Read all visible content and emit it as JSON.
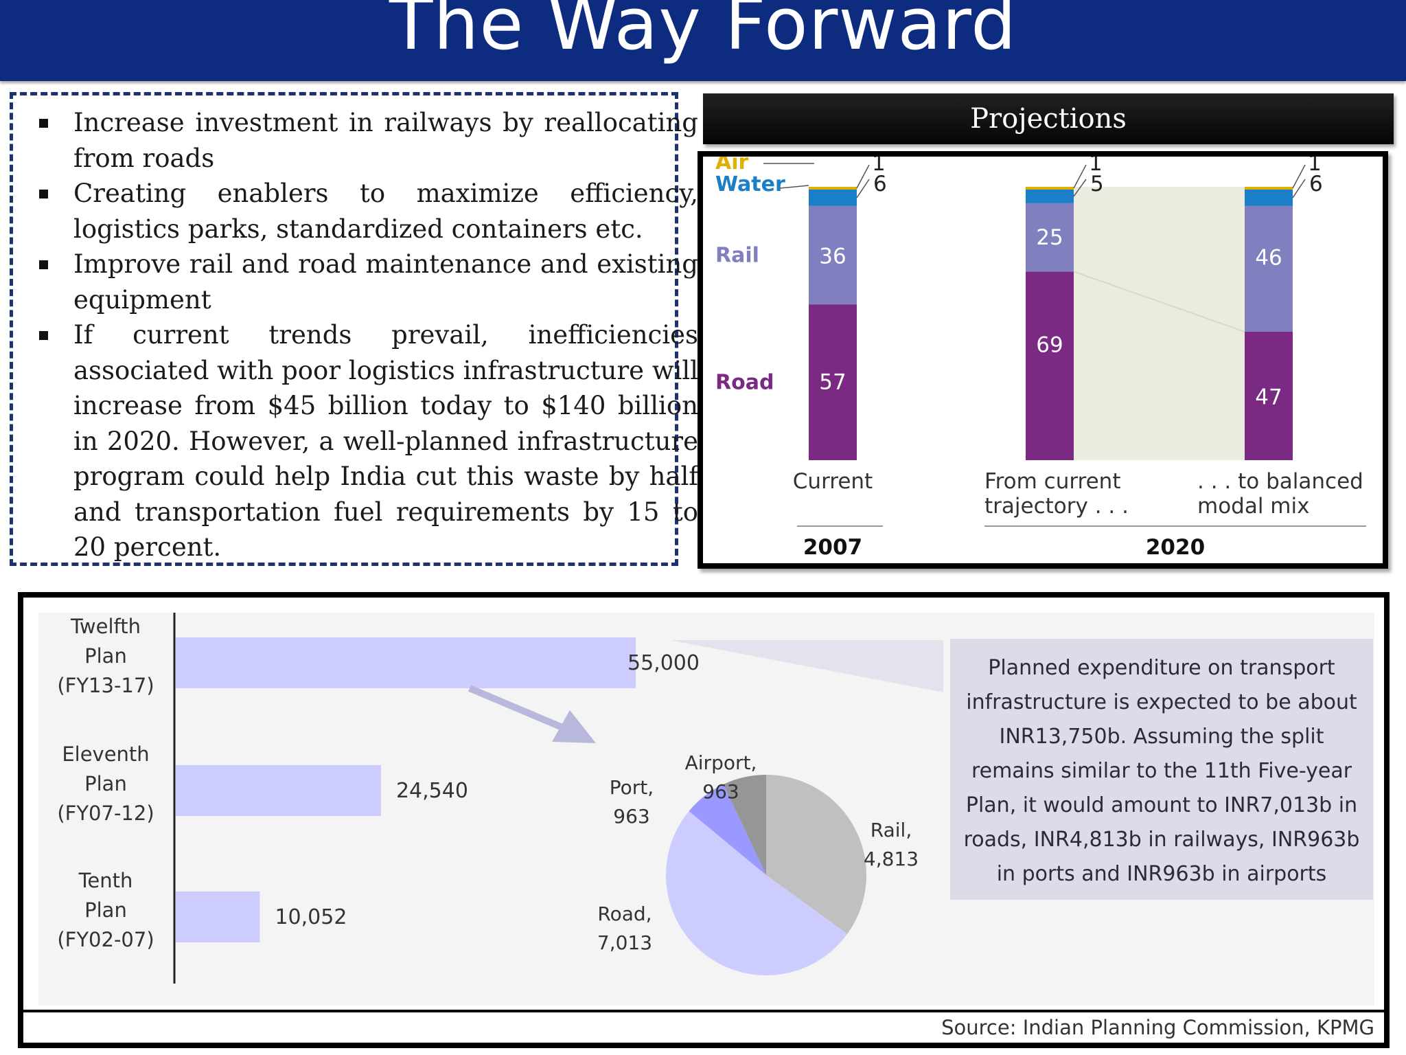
{
  "header": {
    "title": "The Way Forward"
  },
  "bullets": [
    "Increase investment in railways by reallocating from roads",
    "Creating enablers to maximize efficiency, logistics parks, standardized containers etc.",
    "Improve rail and road maintenance and existing equipment",
    "If current trends prevail, inefficiencies associated with poor logistics infrastructure will increase from $45 billion today to $140 billion in 2020. However, a well-planned infrastructure program could help India cut this waste by half and transportation fuel requirements by 15 to 20 percent."
  ],
  "projections": {
    "title": "Projections"
  },
  "source": "Source: Indian Planning Commission, KPMG",
  "callout": "Planned expenditure on transport infrastructure is expected to be about INR13,750b. Assuming the split remains similar to the 11th Five-year Plan, it would amount to INR7,013b in roads, INR4,813b in railways, INR963b in ports and INR963b in airports",
  "colors": {
    "header_bg": "#0d2c80",
    "air": "#e0b000",
    "water": "#1a7fc7",
    "rail": "#8080c0",
    "road": "#7a2a82",
    "band": "#ebebdf",
    "plan_bar": "#ccccff",
    "pie_rail": "#c0c0c0",
    "pie_road": "#ccccff",
    "pie_port": "#9999ff",
    "pie_airport": "#969696"
  },
  "chart_data": [
    {
      "type": "bar",
      "stacked": true,
      "series_order": [
        "Road",
        "Rail",
        "Water",
        "Air"
      ],
      "series_colors": [
        "#7a2a82",
        "#8080c0",
        "#1a7fc7",
        "#e0b000"
      ],
      "columns": [
        {
          "label": "Current",
          "group": "2007",
          "values": [
            57,
            36,
            6,
            1
          ]
        },
        {
          "label": "From current trajectory . . .",
          "group": "2020",
          "values": [
            69,
            25,
            5,
            1
          ]
        },
        {
          "label": ". . . to balanced modal mix",
          "group": "2020",
          "values": [
            47,
            46,
            6,
            1
          ]
        }
      ],
      "groups": [
        "2007",
        "2020"
      ],
      "ylim": [
        0,
        100
      ]
    },
    {
      "type": "bar",
      "orientation": "horizontal",
      "categories": [
        "Twelfth Plan (FY13-17)",
        "Eleventh Plan (FY07-12)",
        "Tenth Plan (FY02-07)"
      ],
      "category_lines": [
        [
          "Twelfth",
          "Plan",
          "(FY13-17)"
        ],
        [
          "Eleventh",
          "Plan",
          "(FY07-12)"
        ],
        [
          "Tenth",
          "Plan",
          "(FY02-07)"
        ]
      ],
      "values": [
        55000,
        24540,
        10052
      ],
      "value_labels": [
        "55,000",
        "24,540",
        "10,052"
      ]
    },
    {
      "type": "pie",
      "slices": [
        {
          "name": "Rail",
          "value": 4813,
          "label": "4,813"
        },
        {
          "name": "Road",
          "value": 7013,
          "label": "7,013"
        },
        {
          "name": "Port",
          "value": 963,
          "label": "963"
        },
        {
          "name": "Airport",
          "value": 963,
          "label": "963"
        }
      ]
    }
  ]
}
